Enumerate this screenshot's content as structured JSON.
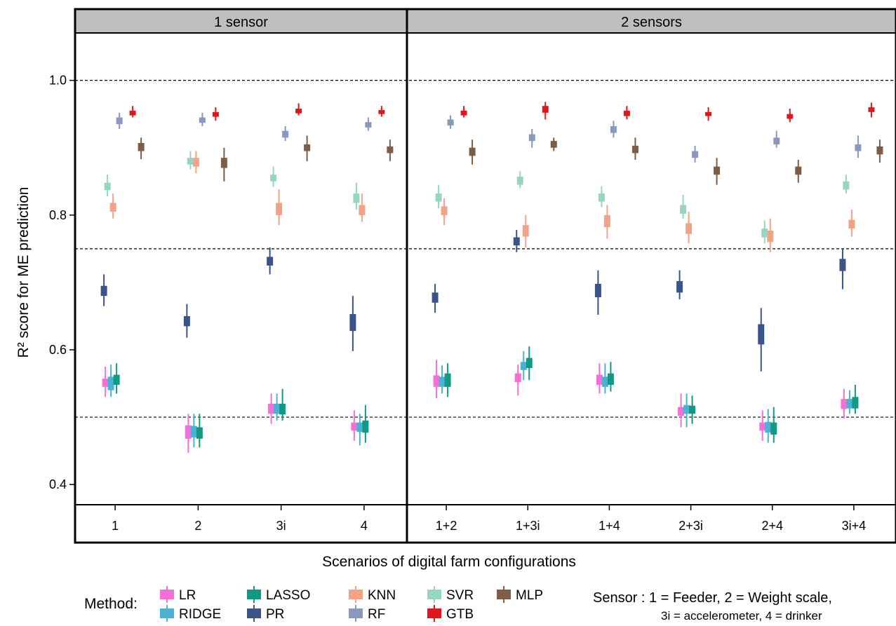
{
  "chart_data": {
    "type": "boxplot",
    "ylabel": "R² score for ME prediction",
    "xlabel": "Scenarios of digital farm configurations",
    "ylim": [
      0.37,
      1.06
    ],
    "yticks": [
      0.4,
      0.6,
      0.8,
      1.0
    ],
    "y_tick_labels": [
      "0.4",
      "0.6",
      "0.8",
      "1.0"
    ],
    "reference_lines": [
      1.0,
      0.75,
      0.5
    ],
    "legend_title": "Method:",
    "legend_position": "bottom-left",
    "sensor_note_lines": [
      "Sensor : 1 = Feeder, 2 = Weight scale,",
      "3i = accelerometer, 4 = drinker"
    ],
    "methods": [
      {
        "name": "LR",
        "color": "#f46fd6"
      },
      {
        "name": "RIDGE",
        "color": "#4ab3d3"
      },
      {
        "name": "LASSO",
        "color": "#129983"
      },
      {
        "name": "PR",
        "color": "#3a5388"
      },
      {
        "name": "KNN",
        "color": "#f2a385"
      },
      {
        "name": "RF",
        "color": "#8a98bd"
      },
      {
        "name": "SVR",
        "color": "#95d5c1"
      },
      {
        "name": "GTB",
        "color": "#e1161b"
      },
      {
        "name": "MLP",
        "color": "#7f5c43"
      }
    ],
    "panels": [
      {
        "title": "1 sensor",
        "categories": [
          "1",
          "2",
          "3i",
          "4"
        ],
        "data": {
          "LR": [
            [
              0.53,
              0.545,
              0.557,
              0.575
            ],
            [
              0.447,
              0.468,
              0.488,
              0.505
            ],
            [
              0.49,
              0.505,
              0.52,
              0.535
            ],
            [
              0.465,
              0.48,
              0.492,
              0.51
            ]
          ],
          "RIDGE": [
            [
              0.53,
              0.54,
              0.56,
              0.578
            ],
            [
              0.455,
              0.47,
              0.487,
              0.505
            ],
            [
              0.495,
              0.505,
              0.52,
              0.535
            ],
            [
              0.458,
              0.478,
              0.492,
              0.505
            ]
          ],
          "LASSO": [
            [
              0.535,
              0.548,
              0.563,
              0.58
            ],
            [
              0.455,
              0.468,
              0.485,
              0.505
            ],
            [
              0.495,
              0.504,
              0.52,
              0.542
            ],
            [
              0.462,
              0.477,
              0.495,
              0.518
            ]
          ],
          "PR": [
            [
              0.665,
              0.68,
              0.695,
              0.712
            ],
            [
              0.618,
              0.635,
              0.65,
              0.668
            ],
            [
              0.712,
              0.725,
              0.738,
              0.752
            ],
            [
              0.598,
              0.628,
              0.653,
              0.68
            ]
          ],
          "KNN": [
            [
              0.795,
              0.805,
              0.818,
              0.832
            ],
            [
              0.862,
              0.872,
              0.885,
              0.895
            ],
            [
              0.785,
              0.8,
              0.818,
              0.838
            ],
            [
              0.79,
              0.8,
              0.815,
              0.832
            ]
          ],
          "RF": [
            [
              0.928,
              0.935,
              0.945,
              0.952
            ],
            [
              0.932,
              0.937,
              0.945,
              0.952
            ],
            [
              0.91,
              0.915,
              0.925,
              0.932
            ],
            [
              0.925,
              0.93,
              0.938,
              0.945
            ]
          ],
          "SVR": [
            [
              0.828,
              0.837,
              0.848,
              0.86
            ],
            [
              0.868,
              0.875,
              0.885,
              0.895
            ],
            [
              0.842,
              0.85,
              0.86,
              0.872
            ],
            [
              0.808,
              0.818,
              0.832,
              0.848
            ]
          ],
          "GTB": [
            [
              0.945,
              0.948,
              0.955,
              0.962
            ],
            [
              0.94,
              0.946,
              0.953,
              0.96
            ],
            [
              0.948,
              0.951,
              0.958,
              0.966
            ],
            [
              0.946,
              0.95,
              0.956,
              0.962
            ]
          ],
          "MLP": [
            [
              0.883,
              0.895,
              0.907,
              0.915
            ],
            [
              0.85,
              0.87,
              0.885,
              0.9
            ],
            [
              0.88,
              0.895,
              0.905,
              0.918
            ],
            [
              0.88,
              0.892,
              0.902,
              0.912
            ]
          ]
        }
      },
      {
        "title": "2 sensors",
        "categories": [
          "1+2",
          "1+3i",
          "1+4",
          "2+3i",
          "2+4",
          "3i+4"
        ],
        "data": {
          "LR": [
            [
              0.528,
              0.545,
              0.562,
              0.585
            ],
            [
              0.532,
              0.552,
              0.565,
              0.578
            ],
            [
              0.535,
              0.548,
              0.563,
              0.58
            ],
            [
              0.485,
              0.502,
              0.515,
              0.535
            ],
            [
              0.465,
              0.48,
              0.492,
              0.51
            ],
            [
              0.498,
              0.512,
              0.527,
              0.542
            ]
          ],
          "RIDGE": [
            [
              0.535,
              0.545,
              0.56,
              0.577
            ],
            [
              0.555,
              0.57,
              0.582,
              0.598
            ],
            [
              0.535,
              0.545,
              0.56,
              0.58
            ],
            [
              0.485,
              0.505,
              0.518,
              0.535
            ],
            [
              0.462,
              0.477,
              0.493,
              0.512
            ],
            [
              0.505,
              0.513,
              0.527,
              0.54
            ]
          ],
          "LASSO": [
            [
              0.53,
              0.545,
              0.565,
              0.58
            ],
            [
              0.555,
              0.573,
              0.588,
              0.605
            ],
            [
              0.538,
              0.548,
              0.565,
              0.582
            ],
            [
              0.49,
              0.505,
              0.517,
              0.532
            ],
            [
              0.462,
              0.474,
              0.492,
              0.515
            ],
            [
              0.505,
              0.513,
              0.53,
              0.548
            ]
          ],
          "PR": [
            [
              0.655,
              0.67,
              0.685,
              0.698
            ],
            [
              0.745,
              0.755,
              0.767,
              0.778
            ],
            [
              0.652,
              0.678,
              0.698,
              0.718
            ],
            [
              0.675,
              0.685,
              0.702,
              0.718
            ],
            [
              0.568,
              0.608,
              0.638,
              0.662
            ],
            [
              0.69,
              0.717,
              0.735,
              0.75
            ]
          ],
          "KNN": [
            [
              0.785,
              0.8,
              0.813,
              0.825
            ],
            [
              0.752,
              0.768,
              0.785,
              0.8
            ],
            [
              0.765,
              0.782,
              0.8,
              0.815
            ],
            [
              0.758,
              0.772,
              0.788,
              0.805
            ],
            [
              0.745,
              0.76,
              0.777,
              0.795
            ],
            [
              0.768,
              0.78,
              0.793,
              0.808
            ]
          ],
          "RF": [
            [
              0.928,
              0.933,
              0.942,
              0.948
            ],
            [
              0.9,
              0.91,
              0.92,
              0.928
            ],
            [
              0.915,
              0.922,
              0.932,
              0.94
            ],
            [
              0.878,
              0.885,
              0.895,
              0.903
            ],
            [
              0.9,
              0.905,
              0.915,
              0.925
            ],
            [
              0.885,
              0.895,
              0.905,
              0.918
            ]
          ],
          "SVR": [
            [
              0.81,
              0.82,
              0.832,
              0.845
            ],
            [
              0.84,
              0.845,
              0.857,
              0.865
            ],
            [
              0.812,
              0.82,
              0.832,
              0.843
            ],
            [
              0.795,
              0.802,
              0.815,
              0.83
            ],
            [
              0.758,
              0.767,
              0.78,
              0.792
            ],
            [
              0.832,
              0.838,
              0.85,
              0.86
            ]
          ],
          "GTB": [
            [
              0.945,
              0.948,
              0.955,
              0.962
            ],
            [
              0.942,
              0.952,
              0.962,
              0.968
            ],
            [
              0.942,
              0.947,
              0.955,
              0.962
            ],
            [
              0.94,
              0.947,
              0.953,
              0.96
            ],
            [
              0.938,
              0.943,
              0.95,
              0.958
            ],
            [
              0.945,
              0.953,
              0.96,
              0.967
            ]
          ],
          "MLP": [
            [
              0.875,
              0.888,
              0.9,
              0.912
            ],
            [
              0.895,
              0.9,
              0.91,
              0.915
            ],
            [
              0.882,
              0.892,
              0.903,
              0.915
            ],
            [
              0.845,
              0.86,
              0.872,
              0.885
            ],
            [
              0.848,
              0.86,
              0.872,
              0.882
            ],
            [
              0.878,
              0.89,
              0.902,
              0.912
            ]
          ]
        }
      }
    ]
  }
}
